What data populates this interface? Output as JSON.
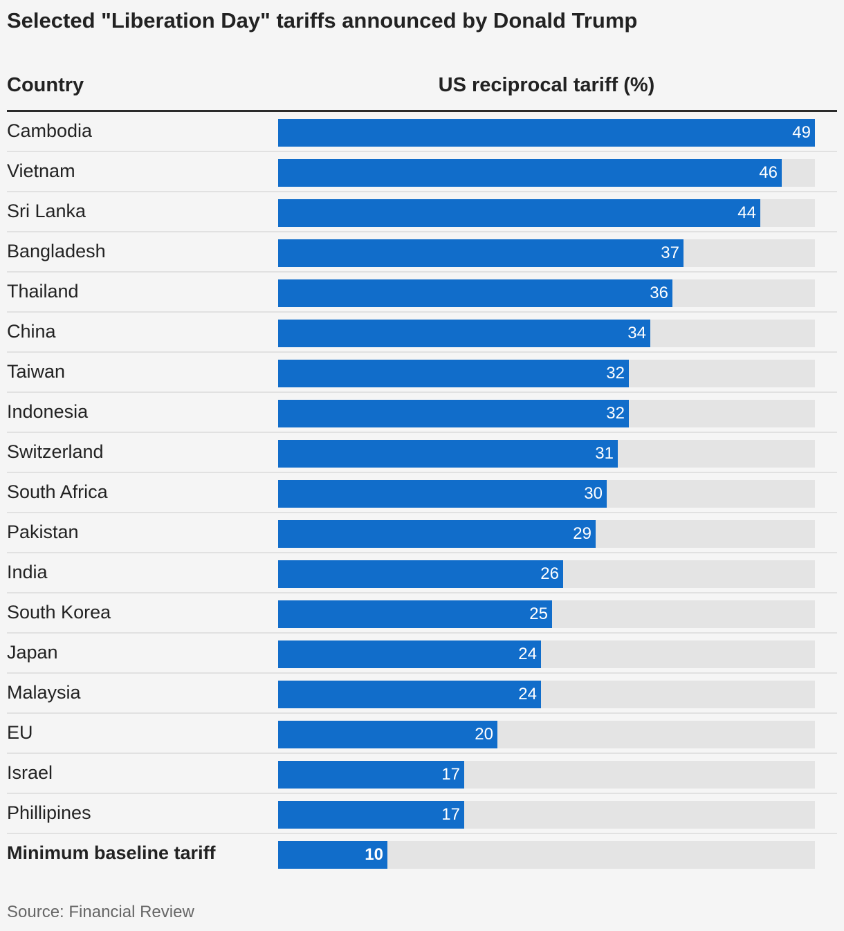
{
  "colors": {
    "background": "#f5f5f5",
    "bar": "#116dca",
    "track": "#e4e4e4",
    "text": "#222222",
    "source": "#666666"
  },
  "chart_data": {
    "type": "bar",
    "orientation": "horizontal",
    "title": "Selected \"Liberation Day\" tariffs announced by Donald Trump",
    "category_header": "Country",
    "value_header": "US reciprocal tariff (%)",
    "source": "Source: Financial Review",
    "xlim": [
      0,
      49
    ],
    "categories": [
      "Cambodia",
      "Vietnam",
      "Sri Lanka",
      "Bangladesh",
      "Thailand",
      "China",
      "Taiwan",
      "Indonesia",
      "Switzerland",
      "South Africa",
      "Pakistan",
      "India",
      "South Korea",
      "Japan",
      "Malaysia",
      "EU",
      "Israel",
      "Phillipines",
      "Minimum baseline tariff"
    ],
    "values": [
      49,
      46,
      44,
      37,
      36,
      34,
      32,
      32,
      31,
      30,
      29,
      26,
      25,
      24,
      24,
      20,
      17,
      17,
      10
    ],
    "emphasized_category": "Minimum baseline tariff",
    "grid": false,
    "data_labels": "inside-end"
  }
}
